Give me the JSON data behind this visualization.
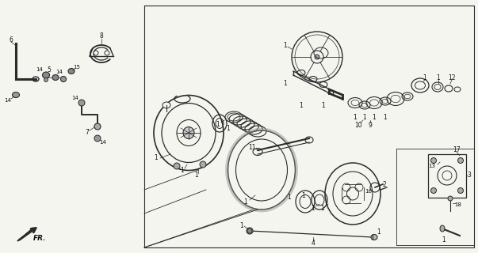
{
  "bg_color": "#f5f5f0",
  "line_color": "#2a2a2a",
  "text_color": "#111111",
  "fig_width": 6.03,
  "fig_height": 3.2,
  "dpi": 100
}
